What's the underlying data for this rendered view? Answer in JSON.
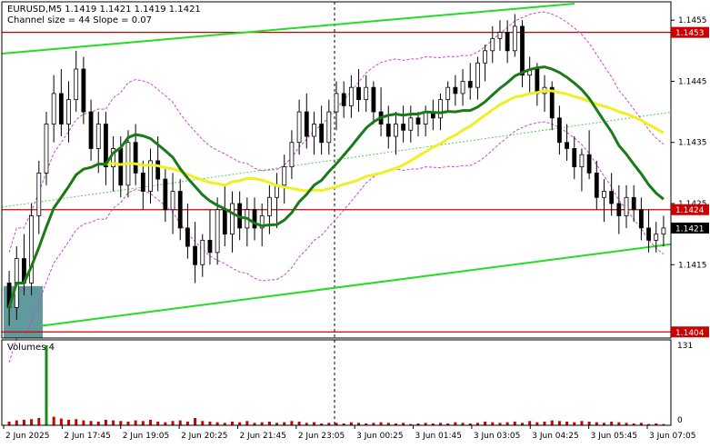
{
  "header": {
    "symbol_line": "EURUSD,M5  1.1419 1.1421 1.1419 1.1421",
    "channel_line": "Channel size = 44 Slope = 0.07"
  },
  "volume_panel": {
    "label": "Volumes 4",
    "scale_max": "131",
    "scale_min": "0"
  },
  "colors": {
    "candle": "#000000",
    "ma_fast": "#1a7a1a",
    "ma_slow": "#f0f020",
    "channel": "#22dd22",
    "channel_mid": "#55cc55",
    "horizontal": "#cc0000",
    "bollinger": "#cc44cc",
    "volume": "#cc0000",
    "zone": "#4f8f91"
  },
  "chart_data": {
    "type": "candlestick",
    "price_axis": {
      "min": 1.1403,
      "max": 1.1458,
      "ticks": [
        "1.1455",
        "1.1445",
        "1.1435",
        "1.1425",
        "1.1415"
      ]
    },
    "price_labels": [
      {
        "value": 1.1453,
        "text": "1.1453",
        "style": "red"
      },
      {
        "value": 1.1424,
        "text": "1.1424",
        "style": "red"
      },
      {
        "value": 1.1421,
        "text": "1.1421",
        "style": "black"
      },
      {
        "value": 1.1404,
        "text": "1.1404",
        "style": "red"
      }
    ],
    "horizontal_lines": [
      1.1453,
      1.1424,
      1.1404
    ],
    "x_labels": [
      "2 Jun 2025",
      "2 Jun 17:45",
      "2 Jun 19:05",
      "2 Jun 20:25",
      "2 Jun 21:45",
      "2 Jun 23:05",
      "3 Jun 00:25",
      "3 Jun 01:45",
      "3 Jun 03:05",
      "3 Jun 04:25",
      "3 Jun 05:45",
      "3 Jun 07:05"
    ],
    "candles_ohlc": [
      [
        1.1412,
        1.1414,
        1.1405,
        1.1408
      ],
      [
        1.1408,
        1.1418,
        1.1406,
        1.1416
      ],
      [
        1.1416,
        1.142,
        1.141,
        1.1412
      ],
      [
        1.1412,
        1.1425,
        1.141,
        1.1423
      ],
      [
        1.1423,
        1.1432,
        1.142,
        1.143
      ],
      [
        1.143,
        1.144,
        1.1428,
        1.1438
      ],
      [
        1.1438,
        1.1446,
        1.1435,
        1.1443
      ],
      [
        1.1443,
        1.1447,
        1.1436,
        1.1438
      ],
      [
        1.1438,
        1.1445,
        1.1435,
        1.1442
      ],
      [
        1.1442,
        1.145,
        1.144,
        1.1447
      ],
      [
        1.1447,
        1.1449,
        1.1438,
        1.144
      ],
      [
        1.144,
        1.1442,
        1.1432,
        1.1434
      ],
      [
        1.1434,
        1.144,
        1.143,
        1.1438
      ],
      [
        1.1438,
        1.144,
        1.1428,
        1.1431
      ],
      [
        1.1431,
        1.1436,
        1.1427,
        1.1434
      ],
      [
        1.1434,
        1.1436,
        1.1426,
        1.1428
      ],
      [
        1.1428,
        1.1437,
        1.1426,
        1.1435
      ],
      [
        1.1435,
        1.1438,
        1.1428,
        1.143
      ],
      [
        1.143,
        1.1432,
        1.1424,
        1.1427
      ],
      [
        1.1427,
        1.1434,
        1.1425,
        1.1432
      ],
      [
        1.1432,
        1.1436,
        1.1427,
        1.1429
      ],
      [
        1.1429,
        1.1431,
        1.1422,
        1.1424
      ],
      [
        1.1424,
        1.143,
        1.142,
        1.1427
      ],
      [
        1.1427,
        1.1429,
        1.1419,
        1.1421
      ],
      [
        1.1421,
        1.1425,
        1.1416,
        1.1418
      ],
      [
        1.1418,
        1.1422,
        1.1412,
        1.1415
      ],
      [
        1.1415,
        1.142,
        1.1413,
        1.1419
      ],
      [
        1.1419,
        1.1424,
        1.1415,
        1.1417
      ],
      [
        1.1417,
        1.1426,
        1.1415,
        1.1424
      ],
      [
        1.1424,
        1.1428,
        1.1418,
        1.142
      ],
      [
        1.142,
        1.1427,
        1.1417,
        1.1425
      ],
      [
        1.1425,
        1.1427,
        1.1419,
        1.1421
      ],
      [
        1.1421,
        1.1426,
        1.1418,
        1.1424
      ],
      [
        1.1424,
        1.1426,
        1.1419,
        1.1421
      ],
      [
        1.1421,
        1.1425,
        1.1418,
        1.1423
      ],
      [
        1.1423,
        1.1428,
        1.142,
        1.1426
      ],
      [
        1.1426,
        1.143,
        1.1421,
        1.1428
      ],
      [
        1.1428,
        1.1433,
        1.1425,
        1.1431
      ],
      [
        1.1431,
        1.1437,
        1.1429,
        1.1435
      ],
      [
        1.1435,
        1.1442,
        1.1433,
        1.144
      ],
      [
        1.144,
        1.1443,
        1.1434,
        1.1436
      ],
      [
        1.1436,
        1.144,
        1.1433,
        1.1438
      ],
      [
        1.1438,
        1.1441,
        1.1433,
        1.1435
      ],
      [
        1.1435,
        1.1442,
        1.1433,
        1.144
      ],
      [
        1.144,
        1.1445,
        1.1437,
        1.1443
      ],
      [
        1.1443,
        1.1445,
        1.1439,
        1.1441
      ],
      [
        1.1441,
        1.1446,
        1.1439,
        1.1444
      ],
      [
        1.1444,
        1.1447,
        1.144,
        1.1442
      ],
      [
        1.1442,
        1.1446,
        1.144,
        1.1444
      ],
      [
        1.1444,
        1.1445,
        1.1438,
        1.144
      ],
      [
        1.144,
        1.1444,
        1.1436,
        1.1438
      ],
      [
        1.1438,
        1.1441,
        1.1434,
        1.1436
      ],
      [
        1.1436,
        1.144,
        1.1433,
        1.1438
      ],
      [
        1.1438,
        1.1441,
        1.1435,
        1.1437
      ],
      [
        1.1437,
        1.1441,
        1.1435,
        1.1439
      ],
      [
        1.1439,
        1.144,
        1.1436,
        1.1438
      ],
      [
        1.1438,
        1.1441,
        1.1436,
        1.144
      ],
      [
        1.144,
        1.1442,
        1.1437,
        1.1439
      ],
      [
        1.1439,
        1.1443,
        1.1437,
        1.1442
      ],
      [
        1.1442,
        1.1445,
        1.144,
        1.1444
      ],
      [
        1.1444,
        1.1446,
        1.1441,
        1.1443
      ],
      [
        1.1443,
        1.1447,
        1.1441,
        1.1445
      ],
      [
        1.1445,
        1.1448,
        1.1442,
        1.1444
      ],
      [
        1.1444,
        1.1449,
        1.1442,
        1.1448
      ],
      [
        1.1448,
        1.1451,
        1.1445,
        1.145
      ],
      [
        1.145,
        1.1454,
        1.1448,
        1.1452
      ],
      [
        1.1452,
        1.1455,
        1.145,
        1.1453
      ],
      [
        1.1453,
        1.1455,
        1.1448,
        1.145
      ],
      [
        1.145,
        1.1456,
        1.1449,
        1.1454
      ],
      [
        1.1454,
        1.1455,
        1.1444,
        1.1446
      ],
      [
        1.1446,
        1.1449,
        1.1443,
        1.1447
      ],
      [
        1.1447,
        1.1448,
        1.1441,
        1.1443
      ],
      [
        1.1443,
        1.1446,
        1.144,
        1.1444
      ],
      [
        1.1444,
        1.1445,
        1.1437,
        1.1439
      ],
      [
        1.1439,
        1.1441,
        1.1433,
        1.1435
      ],
      [
        1.1435,
        1.1438,
        1.1432,
        1.1434
      ],
      [
        1.1434,
        1.1436,
        1.1429,
        1.1431
      ],
      [
        1.1431,
        1.1434,
        1.1427,
        1.1433
      ],
      [
        1.1433,
        1.1437,
        1.1429,
        1.143
      ],
      [
        1.143,
        1.1432,
        1.1424,
        1.1426
      ],
      [
        1.1426,
        1.1429,
        1.1422,
        1.1427
      ],
      [
        1.1427,
        1.143,
        1.1423,
        1.1425
      ],
      [
        1.1425,
        1.1428,
        1.142,
        1.1423
      ],
      [
        1.1423,
        1.1428,
        1.1421,
        1.1426
      ],
      [
        1.1426,
        1.1428,
        1.1422,
        1.1424
      ],
      [
        1.1424,
        1.1426,
        1.1419,
        1.1421
      ],
      [
        1.1421,
        1.1424,
        1.1417,
        1.1419
      ],
      [
        1.1419,
        1.1422,
        1.1417,
        1.142
      ],
      [
        1.142,
        1.1423,
        1.1418,
        1.1421
      ]
    ],
    "volumes": [
      6,
      8,
      9,
      10,
      12,
      131,
      14,
      11,
      9,
      10,
      8,
      7,
      6,
      9,
      8,
      7,
      6,
      8,
      7,
      9,
      6,
      5,
      7,
      8,
      6,
      12,
      7,
      6,
      5,
      4,
      6,
      5,
      7,
      4,
      5,
      6,
      4,
      5,
      7,
      6,
      4,
      5,
      3,
      4,
      4,
      3,
      5,
      4,
      3,
      4,
      5,
      4,
      3,
      4,
      2,
      3,
      4,
      3,
      4,
      3,
      5,
      4,
      3,
      4,
      6,
      5,
      4,
      5,
      6,
      4,
      7,
      5,
      6,
      8,
      7,
      6,
      5,
      7,
      6,
      5,
      4,
      6,
      5,
      4,
      3,
      4,
      2,
      3,
      2
    ]
  }
}
